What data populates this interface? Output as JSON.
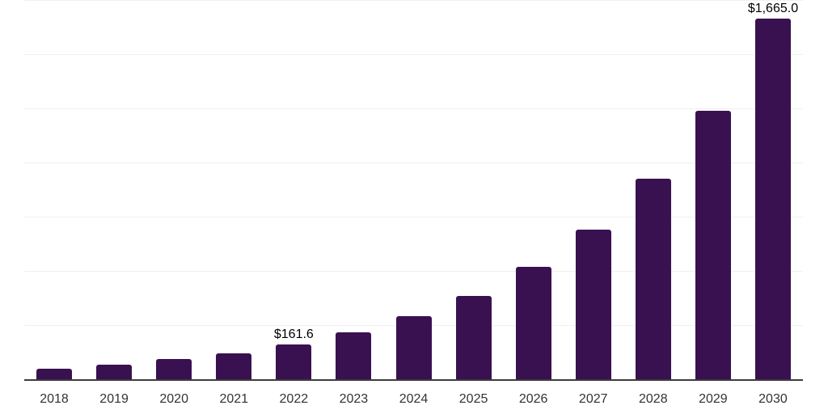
{
  "chart_data": {
    "type": "bar",
    "title": "",
    "xlabel": "",
    "ylabel": "",
    "categories": [
      "2018",
      "2019",
      "2020",
      "2021",
      "2022",
      "2023",
      "2024",
      "2025",
      "2026",
      "2027",
      "2028",
      "2029",
      "2030"
    ],
    "values": [
      50,
      69,
      92,
      121,
      161.6,
      215,
      290,
      386,
      517,
      692,
      926,
      1240,
      1665
    ],
    "data_labels": [
      "",
      "",
      "",
      "",
      "$161.6",
      "",
      "",
      "",
      "",
      "",
      "",
      "",
      "$1,665.0"
    ],
    "ylim": [
      0,
      1750
    ],
    "grid_interval": 250,
    "grid": true,
    "y_tick_labels_shown": false,
    "legend_position": "none",
    "colors": {
      "bar": "#391150",
      "gridline": "#f0f0f0",
      "axis_line": "#3d3d3d",
      "x_tick_label": "#333333",
      "data_label": "#000000",
      "background": "#ffffff"
    }
  }
}
